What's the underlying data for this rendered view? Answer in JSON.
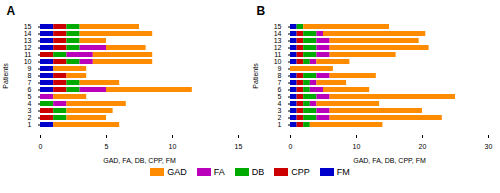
{
  "chart_data": [
    {
      "type": "bar",
      "title": "A",
      "orientation": "horizontal",
      "stacked": true,
      "legend": "bottom",
      "categories": [
        "1",
        "2",
        "3",
        "4",
        "5",
        "6",
        "7",
        "8",
        "9",
        "10",
        "11",
        "12",
        "13",
        "14",
        "15"
      ],
      "series": [
        {
          "name": "FM",
          "color": "#0000CC",
          "values": [
            1,
            0,
            0,
            0,
            0,
            1,
            1,
            1,
            1,
            1,
            0,
            1,
            1,
            1,
            1
          ]
        },
        {
          "name": "CPP",
          "color": "#CC0000",
          "values": [
            0,
            1,
            1,
            0,
            0,
            1,
            1,
            1,
            0,
            1,
            1,
            1,
            1,
            1,
            1
          ]
        },
        {
          "name": "DB",
          "color": "#00AA00",
          "values": [
            0,
            1,
            1,
            1,
            0,
            1,
            1,
            0,
            0,
            1,
            1,
            1,
            1,
            1,
            1
          ]
        },
        {
          "name": "FA",
          "color": "#BB00BB",
          "values": [
            0,
            0,
            0,
            1,
            1,
            2,
            0,
            0,
            0,
            1,
            2,
            2,
            0,
            0,
            0
          ]
        },
        {
          "name": "GAD",
          "color": "#FF8C00",
          "values": [
            5,
            3,
            3.5,
            4.5,
            2.5,
            6.5,
            3,
            1.5,
            2.5,
            4.5,
            4.5,
            3,
            2,
            5.5,
            4.5
          ]
        }
      ],
      "x_label": "GAD, FA, DB, CPP, FM",
      "y_label": "Patients",
      "xlim": [
        0,
        15
      ],
      "xticks": [
        0,
        5,
        10,
        15
      ]
    },
    {
      "type": "bar",
      "title": "B",
      "orientation": "horizontal",
      "stacked": true,
      "legend": "bottom",
      "categories": [
        "1",
        "2",
        "3",
        "4",
        "5",
        "6",
        "7",
        "8",
        "9",
        "10",
        "11",
        "12",
        "13",
        "14",
        "15"
      ],
      "series": [
        {
          "name": "FM",
          "color": "#0000CC",
          "values": [
            1,
            1,
            1,
            1,
            1,
            1,
            1,
            1,
            0,
            1,
            1,
            1,
            1,
            1,
            1
          ]
        },
        {
          "name": "CPP",
          "color": "#CC0000",
          "values": [
            1,
            1,
            1,
            1,
            1,
            1,
            1,
            1,
            0,
            1,
            1,
            1,
            1,
            1,
            0
          ]
        },
        {
          "name": "DB",
          "color": "#00AA00",
          "values": [
            1,
            2,
            2,
            1,
            2,
            1,
            1,
            2,
            0,
            1,
            2,
            2,
            2,
            2,
            1
          ]
        },
        {
          "name": "FA",
          "color": "#BB00BB",
          "values": [
            0,
            2,
            2,
            1,
            2,
            2,
            1,
            2,
            0,
            1,
            2,
            2,
            2,
            1,
            0
          ]
        },
        {
          "name": "GAD",
          "color": "#FF8C00",
          "values": [
            11,
            17,
            14,
            9.5,
            19,
            7,
            4.5,
            7,
            6.5,
            5,
            10,
            15,
            13.5,
            15.5,
            13
          ]
        }
      ],
      "x_label": "GAD, FA, DB, CPP, FM",
      "y_label": "Patients",
      "xlim": [
        0,
        30
      ],
      "xticks": [
        0,
        10,
        20,
        30
      ]
    }
  ]
}
